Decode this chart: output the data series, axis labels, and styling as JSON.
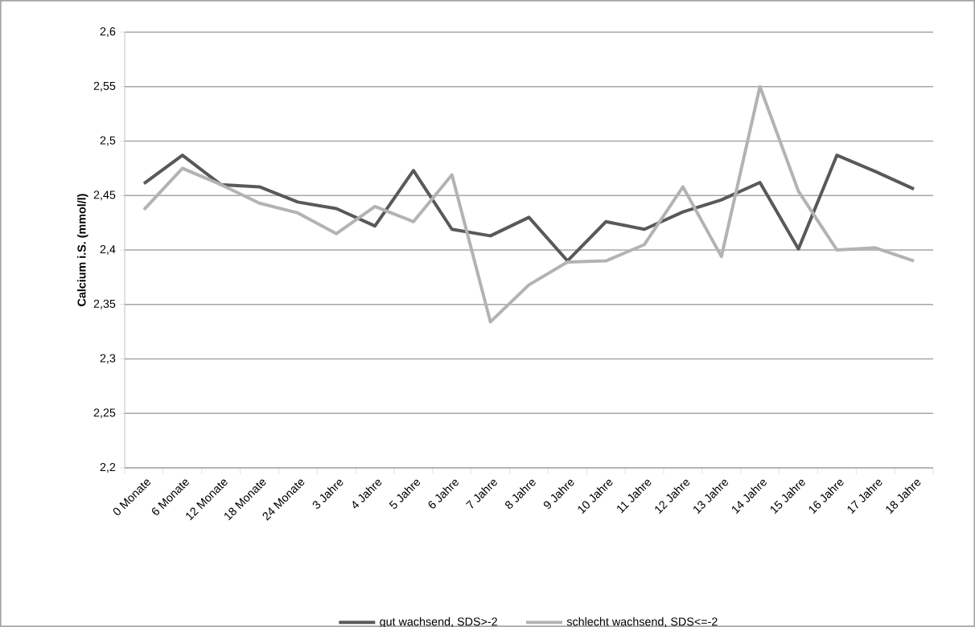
{
  "chart_data": {
    "type": "line",
    "ylabel": "Calcium i.S. (mmol/l)",
    "categories": [
      "0 Monate",
      "6 Monate",
      "12 Monate",
      "18 Monate",
      "24 Monate",
      "3 Jahre",
      "4 Jahre",
      "5 Jahre",
      "6 Jahre",
      "7 Jahre",
      "8 Jahre",
      "9 Jahre",
      "10 Jahre",
      "11 Jahre",
      "12 Jahre",
      "13 Jahre",
      "14 Jahre",
      "15 Jahre",
      "16 Jahre",
      "17 Jahre",
      "18 Jahre"
    ],
    "series": [
      {
        "name": "gut wachsend, SDS>-2",
        "color": "#595959",
        "values": [
          2.461,
          2.487,
          2.46,
          2.458,
          2.444,
          2.438,
          2.422,
          2.473,
          2.419,
          2.413,
          2.43,
          2.39,
          2.426,
          2.419,
          2.435,
          2.446,
          2.462,
          2.401,
          2.487,
          2.472,
          2.456
        ]
      },
      {
        "name": "schlecht wachsend, SDS<=-2",
        "color": "#b3b3b3",
        "values": [
          2.437,
          2.475,
          2.46,
          2.443,
          2.434,
          2.415,
          2.44,
          2.426,
          2.469,
          2.334,
          2.368,
          2.389,
          2.39,
          2.405,
          2.458,
          2.394,
          2.55,
          2.454,
          2.4,
          2.402,
          2.39
        ]
      }
    ],
    "ylim": [
      2.2,
      2.6
    ],
    "yticks": [
      {
        "value": 2.2,
        "label": "2,2"
      },
      {
        "value": 2.25,
        "label": "2,25"
      },
      {
        "value": 2.3,
        "label": "2,3"
      },
      {
        "value": 2.35,
        "label": "2,35"
      },
      {
        "value": 2.4,
        "label": "2,4"
      },
      {
        "value": 2.45,
        "label": "2,45"
      },
      {
        "value": 2.5,
        "label": "2,5"
      },
      {
        "value": 2.55,
        "label": "2,55"
      },
      {
        "value": 2.6,
        "label": "2,6"
      }
    ],
    "grid": "y",
    "legend": "bottom",
    "marker": "none",
    "line_style": "solid"
  }
}
